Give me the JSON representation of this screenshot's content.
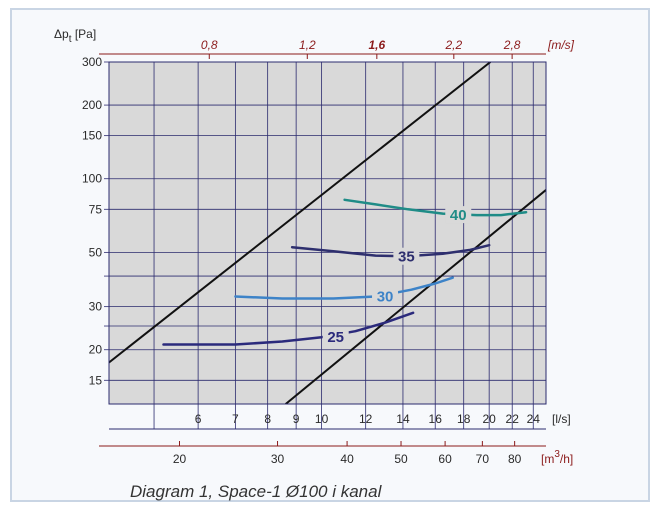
{
  "chart_data": {
    "type": "line",
    "caption": "Diagram 1, Space-1 Ø100 i kanal",
    "y_axis": {
      "label_main": "Δp",
      "label_sub": "t",
      "label_unit": "[Pa]",
      "scale": "log",
      "range": [
        12,
        300
      ],
      "ticks": [
        15,
        20,
        30,
        50,
        75,
        100,
        150,
        200,
        300
      ],
      "tick_labels": [
        "15",
        "20",
        "30",
        "50",
        "75",
        "100",
        "150",
        "200",
        "300"
      ],
      "minor": [
        25,
        40
      ]
    },
    "x_axis": {
      "unit": "[l/s]",
      "scale": "log",
      "range": [
        4.15,
        25.3
      ],
      "ticks": [
        6,
        7,
        8,
        9,
        10,
        12,
        14,
        16,
        18,
        20,
        22,
        24
      ],
      "tick_labels": [
        "6",
        "7",
        "8",
        "9",
        "10",
        "12",
        "14",
        "16",
        "18",
        "20",
        "22",
        "24"
      ],
      "minor": [
        5
      ]
    },
    "velocity_axis": {
      "unit": "[m/s]",
      "ticks": [
        0.8,
        1.2,
        1.6,
        2.2,
        2.8
      ],
      "tick_labels": [
        "0,8",
        "1,2",
        "1,6",
        "2,2",
        "2,8"
      ]
    },
    "flow_axis": {
      "unit_main": "[m",
      "unit_sup": "3",
      "unit_end": "/h]",
      "ticks": [
        20,
        30,
        40,
        50,
        60,
        70,
        80
      ],
      "tick_labels": [
        "20",
        "30",
        "40",
        "50",
        "60",
        "70",
        "80"
      ]
    },
    "boundary_lines": [
      {
        "points": [
          [
            4.0,
            16.6
          ],
          [
            20.1,
            300
          ]
        ]
      },
      {
        "points": [
          [
            8.62,
            12
          ],
          [
            25.3,
            90
          ]
        ]
      }
    ],
    "series": [
      {
        "name": "25",
        "color": "#2b2a7c",
        "label_at": [
          10.6,
          22.5
        ],
        "points": [
          [
            5.2,
            21
          ],
          [
            7.0,
            21
          ],
          [
            8.5,
            21.6
          ],
          [
            10.0,
            22.5
          ],
          [
            11.5,
            23.8
          ],
          [
            13.0,
            25.8
          ],
          [
            14.6,
            28.3
          ]
        ]
      },
      {
        "name": "30",
        "color": "#3d83c8",
        "label_at": [
          13.0,
          33
        ],
        "points": [
          [
            7.0,
            33
          ],
          [
            8.5,
            32.4
          ],
          [
            10.5,
            32.4
          ],
          [
            12.5,
            33
          ],
          [
            14.5,
            35.2
          ],
          [
            16.0,
            37.3
          ],
          [
            17.2,
            39.4
          ]
        ]
      },
      {
        "name": "35",
        "color": "#2e2f6e",
        "label_at": [
          14.2,
          48
        ],
        "points": [
          [
            8.85,
            52.5
          ],
          [
            10.5,
            50.5
          ],
          [
            12.5,
            48.5
          ],
          [
            14.2,
            48.2
          ],
          [
            16.5,
            49.4
          ],
          [
            18.5,
            51.2
          ],
          [
            20.0,
            53.5
          ]
        ]
      },
      {
        "name": "40",
        "color": "#1f8c87",
        "label_at": [
          17.6,
          71
        ],
        "points": [
          [
            11.0,
            82
          ],
          [
            12.5,
            78.5
          ],
          [
            14.3,
            75
          ],
          [
            16.5,
            72
          ],
          [
            19.0,
            71
          ],
          [
            21.0,
            71
          ],
          [
            23.3,
            73
          ]
        ]
      }
    ]
  }
}
